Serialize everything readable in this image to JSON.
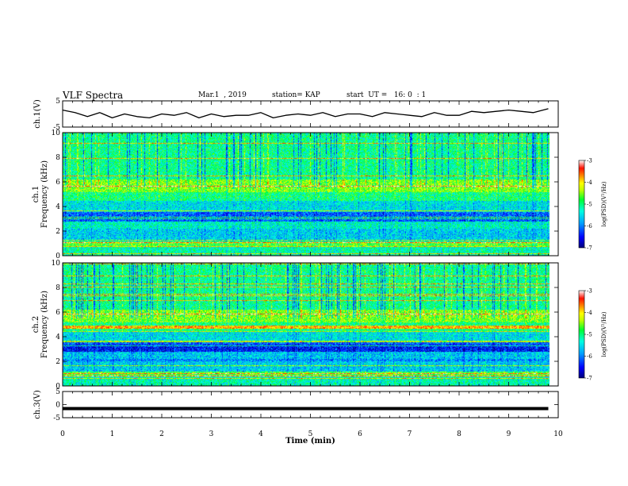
{
  "header": {
    "title": "VLF Spectra",
    "date": "Mar.1  , 2019",
    "station": "station= KAP",
    "start": "start  UT =   16: 0  : 1"
  },
  "colors": {
    "frame": "#000000",
    "trace": "#000000",
    "colormap": [
      "#0000b0",
      "#0010ff",
      "#00a0ff",
      "#00ffd0",
      "#00ff40",
      "#a0ff00",
      "#ffff00",
      "#ffa000",
      "#ff2000",
      "#ffffff"
    ]
  },
  "chart_data": [
    {
      "id": "ch1-waveform",
      "type": "line",
      "ylabel": "ch.1(V)",
      "ylim": [
        -5,
        5
      ],
      "yticks": [
        "5",
        "-5"
      ],
      "x": [
        0.0,
        0.25,
        0.5,
        0.75,
        1.0,
        1.25,
        1.5,
        1.75,
        2.0,
        2.25,
        2.5,
        2.75,
        3.0,
        3.25,
        3.5,
        3.75,
        4.0,
        4.25,
        4.5,
        4.75,
        5.0,
        5.25,
        5.5,
        5.75,
        6.0,
        6.25,
        6.5,
        6.75,
        7.0,
        7.25,
        7.5,
        7.75,
        8.0,
        8.25,
        8.5,
        8.75,
        9.0,
        9.25,
        9.5,
        9.8
      ],
      "y": [
        1.5,
        0.5,
        -1.0,
        0.5,
        -1.5,
        0.0,
        -1.0,
        -1.5,
        0.0,
        -0.5,
        0.5,
        -1.5,
        0.0,
        -1.0,
        -0.5,
        -0.5,
        0.5,
        -1.5,
        -0.5,
        0.0,
        -0.5,
        0.5,
        -1.0,
        0.0,
        0.0,
        -1.0,
        0.5,
        0.0,
        -0.5,
        -1.0,
        0.5,
        -0.5,
        -0.5,
        1.0,
        0.5,
        1.0,
        1.5,
        1.0,
        0.5,
        2.0
      ]
    },
    {
      "id": "ch1-spectrogram",
      "type": "heatmap",
      "ylabel": "ch.1",
      "ylabel2": "Frequency (kHz)",
      "ylim": [
        0,
        10
      ],
      "yticks": [
        "0",
        "2",
        "4",
        "6",
        "8",
        "10"
      ],
      "colorbar": {
        "label": "log(PSD)(V²/Hz)",
        "range": [
          -7,
          -3
        ],
        "ticks": [
          "-3",
          "-4",
          "-5",
          "-6",
          "-7"
        ]
      }
    },
    {
      "id": "ch2-spectrogram",
      "type": "heatmap",
      "ylabel": "ch.2",
      "ylabel2": "Frequency (kHz)",
      "ylim": [
        0,
        10
      ],
      "yticks": [
        "0",
        "2",
        "4",
        "6",
        "8",
        "10"
      ],
      "colorbar": {
        "label": "log(PSD)(V²/Hz)",
        "range": [
          -7,
          -3
        ],
        "ticks": [
          "-3",
          "-4",
          "-5",
          "-6",
          "-7"
        ]
      }
    },
    {
      "id": "ch3-waveform",
      "type": "line",
      "ylabel": "ch.3(V)",
      "ylim": [
        -5,
        5
      ],
      "yticks": [
        "5",
        "0",
        "-5"
      ],
      "x": [
        0,
        9.8
      ],
      "y": [
        -1.5,
        -1.5
      ],
      "xlabel": "Time  (min)",
      "xlim": [
        0,
        10
      ],
      "xticks": [
        "0",
        "1",
        "2",
        "3",
        "4",
        "5",
        "6",
        "7",
        "8",
        "9",
        "10"
      ]
    }
  ]
}
